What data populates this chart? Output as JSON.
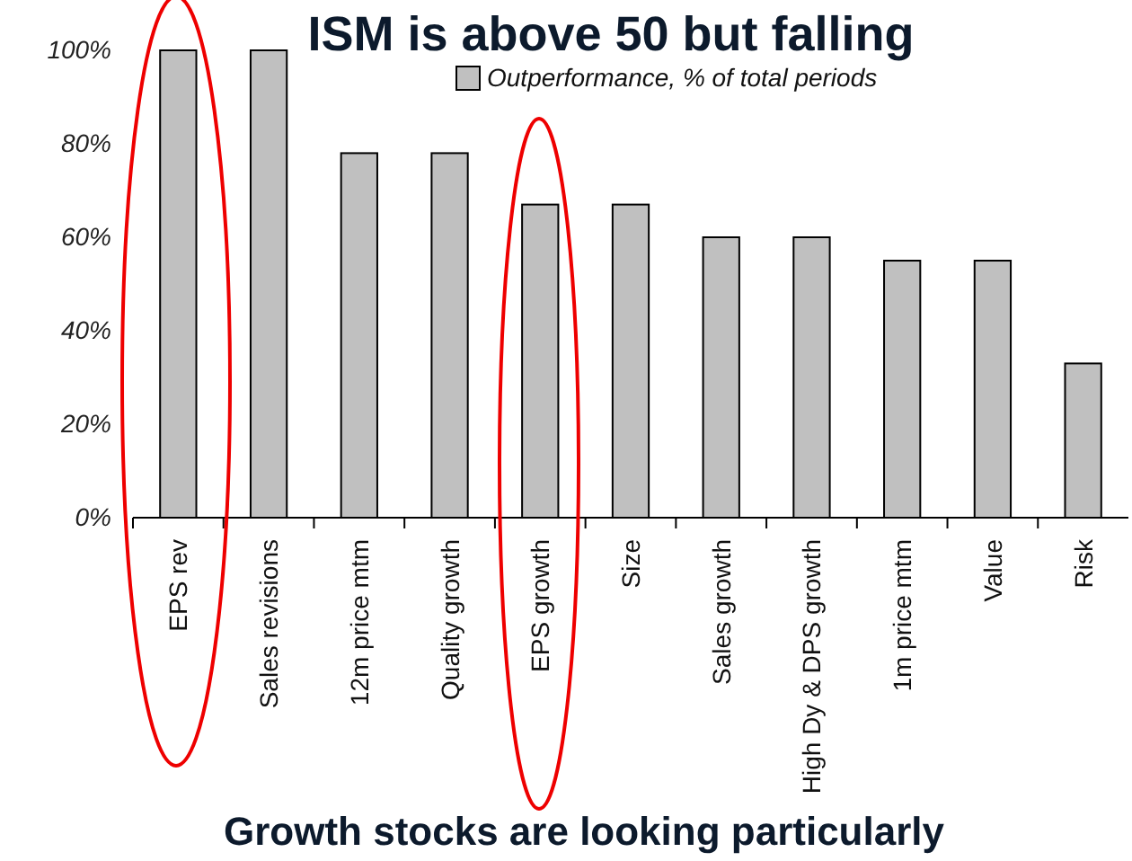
{
  "chart_data": {
    "type": "bar",
    "title": "ISM is above 50 but falling",
    "categories": [
      "EPS rev",
      "Sales revisions",
      "12m price mtm",
      "Quality growth",
      "EPS growth",
      "Size",
      "Sales growth",
      "High Dy & DPS growth",
      "1m price mtm",
      "Value",
      "Risk"
    ],
    "series": [
      {
        "name": "Outperformance, % of total periods",
        "color": "#c0c0c0",
        "values": [
          100,
          100,
          78,
          78,
          67,
          67,
          60,
          60,
          55,
          55,
          33
        ]
      }
    ],
    "ylim": [
      0,
      100
    ],
    "yticks": [
      {
        "value": 0,
        "label": "0%"
      },
      {
        "value": 20,
        "label": "20%"
      },
      {
        "value": 40,
        "label": "40%"
      },
      {
        "value": 60,
        "label": "60%"
      },
      {
        "value": 80,
        "label": "80%"
      },
      {
        "value": 100,
        "label": "100%"
      }
    ],
    "grid": false,
    "legend": "top right",
    "annotations": [
      "Growth stocks are looking particularly"
    ]
  }
}
